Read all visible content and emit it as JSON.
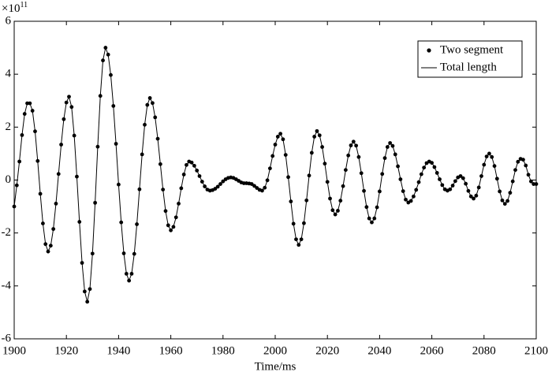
{
  "chart_data": {
    "type": "line",
    "xlabel": "Time/ms",
    "y_scale_label": {
      "base": "×10",
      "exponent": "11"
    },
    "xlim": [
      1900,
      2100
    ],
    "xticks": [
      1900,
      1920,
      1940,
      1960,
      1980,
      2000,
      2020,
      2040,
      2060,
      2080,
      2100
    ],
    "ylim": [
      -6,
      6
    ],
    "yticks": [
      -6,
      -4,
      -2,
      0,
      2,
      4,
      6
    ],
    "legend": "upper right",
    "x": [
      1900,
      1901,
      1902,
      1903,
      1904,
      1905,
      1906,
      1907,
      1908,
      1909,
      1910,
      1911,
      1912,
      1913,
      1914,
      1915,
      1916,
      1917,
      1918,
      1919,
      1920,
      1921,
      1922,
      1923,
      1924,
      1925,
      1926,
      1927,
      1928,
      1929,
      1930,
      1931,
      1932,
      1933,
      1934,
      1935,
      1936,
      1937,
      1938,
      1939,
      1940,
      1941,
      1942,
      1943,
      1944,
      1945,
      1946,
      1947,
      1948,
      1949,
      1950,
      1951,
      1952,
      1953,
      1954,
      1955,
      1956,
      1957,
      1958,
      1959,
      1960,
      1961,
      1962,
      1963,
      1964,
      1965,
      1966,
      1967,
      1968,
      1969,
      1970,
      1971,
      1972,
      1973,
      1974,
      1975,
      1976,
      1977,
      1978,
      1979,
      1980,
      1981,
      1982,
      1983,
      1984,
      1985,
      1986,
      1987,
      1988,
      1989,
      1990,
      1991,
      1992,
      1993,
      1994,
      1995,
      1996,
      1997,
      1998,
      1999,
      2000,
      2001,
      2002,
      2003,
      2004,
      2005,
      2006,
      2007,
      2008,
      2009,
      2010,
      2011,
      2012,
      2013,
      2014,
      2015,
      2016,
      2017,
      2018,
      2019,
      2020,
      2021,
      2022,
      2023,
      2024,
      2025,
      2026,
      2027,
      2028,
      2029,
      2030,
      2031,
      2032,
      2033,
      2034,
      2035,
      2036,
      2037,
      2038,
      2039,
      2040,
      2041,
      2042,
      2043,
      2044,
      2045,
      2046,
      2047,
      2048,
      2049,
      2050,
      2051,
      2052,
      2053,
      2054,
      2055,
      2056,
      2057,
      2058,
      2059,
      2060,
      2061,
      2062,
      2063,
      2064,
      2065,
      2066,
      2067,
      2068,
      2069,
      2070,
      2071,
      2072,
      2073,
      2074,
      2075,
      2076,
      2077,
      2078,
      2079,
      2080,
      2081,
      2082,
      2083,
      2084,
      2085,
      2086,
      2087,
      2088,
      2089,
      2090,
      2091,
      2092,
      2093,
      2094,
      2095,
      2096,
      2097,
      2098,
      2099,
      2100
    ],
    "series": [
      {
        "name": "Two segment",
        "color": "#000000",
        "style": "dots",
        "values": [
          -1.0,
          -0.2,
          0.7,
          1.7,
          2.5,
          2.9,
          2.9,
          2.62,
          1.84,
          0.72,
          -0.52,
          -1.64,
          -2.42,
          -2.7,
          -2.48,
          -1.85,
          -0.89,
          0.23,
          1.34,
          2.3,
          2.93,
          3.15,
          2.76,
          1.68,
          0.13,
          -1.58,
          -3.13,
          -4.21,
          -4.6,
          -4.12,
          -2.78,
          -0.86,
          1.26,
          3.18,
          4.52,
          5.0,
          4.74,
          3.97,
          2.8,
          1.37,
          -0.17,
          -1.6,
          -2.77,
          -3.54,
          -3.8,
          -3.54,
          -2.79,
          -1.67,
          -0.35,
          0.97,
          2.09,
          2.84,
          3.1,
          2.91,
          2.37,
          1.56,
          0.6,
          -0.36,
          -1.17,
          -1.71,
          -1.9,
          -1.77,
          -1.41,
          -0.89,
          -0.31,
          0.21,
          0.57,
          0.7,
          0.66,
          0.54,
          0.36,
          0.15,
          -0.06,
          -0.24,
          -0.36,
          -0.4,
          -0.38,
          -0.33,
          -0.25,
          -0.15,
          -0.05,
          0.03,
          0.08,
          0.1,
          0.08,
          0.03,
          -0.03,
          -0.09,
          -0.12,
          -0.12,
          -0.13,
          -0.15,
          -0.22,
          -0.3,
          -0.37,
          -0.4,
          -0.29,
          -0.01,
          0.44,
          0.91,
          1.34,
          1.64,
          1.75,
          1.54,
          0.95,
          0.11,
          -0.81,
          -1.65,
          -2.24,
          -2.45,
          -2.24,
          -1.63,
          -0.77,
          0.17,
          1.03,
          1.64,
          1.85,
          1.69,
          1.25,
          0.62,
          -0.07,
          -0.7,
          -1.14,
          -1.3,
          -1.16,
          -0.78,
          -0.23,
          0.38,
          0.93,
          1.31,
          1.45,
          1.3,
          0.87,
          0.26,
          -0.41,
          -1.02,
          -1.45,
          -1.6,
          -1.45,
          -1.03,
          -0.43,
          0.23,
          0.83,
          1.25,
          1.4,
          1.29,
          0.97,
          0.52,
          0.03,
          -0.42,
          -0.74,
          -0.85,
          -0.79,
          -0.62,
          -0.37,
          -0.08,
          0.22,
          0.47,
          0.64,
          0.7,
          0.65,
          0.49,
          0.27,
          0.03,
          -0.19,
          -0.35,
          -0.4,
          -0.35,
          -0.21,
          -0.04,
          0.1,
          0.15,
          0.07,
          -0.14,
          -0.41,
          -0.62,
          -0.7,
          -0.59,
          -0.28,
          0.15,
          0.58,
          0.89,
          1.0,
          0.87,
          0.53,
          0.05,
          -0.43,
          -0.77,
          -0.9,
          -0.79,
          -0.48,
          -0.05,
          0.38,
          0.69,
          0.8,
          0.77,
          0.55,
          0.2,
          -0.05,
          -0.15,
          -0.15
        ]
      },
      {
        "name": "Total length",
        "color": "#000000",
        "style": "line",
        "values": [
          -1.0,
          -0.2,
          0.7,
          1.7,
          2.5,
          2.9,
          2.9,
          2.62,
          1.84,
          0.72,
          -0.52,
          -1.64,
          -2.42,
          -2.7,
          -2.48,
          -1.85,
          -0.89,
          0.23,
          1.34,
          2.3,
          2.93,
          3.15,
          2.76,
          1.68,
          0.13,
          -1.58,
          -3.13,
          -4.21,
          -4.6,
          -4.12,
          -2.78,
          -0.86,
          1.26,
          3.18,
          4.52,
          5.0,
          4.74,
          3.97,
          2.8,
          1.37,
          -0.17,
          -1.6,
          -2.77,
          -3.54,
          -3.8,
          -3.54,
          -2.79,
          -1.67,
          -0.35,
          0.97,
          2.09,
          2.84,
          3.1,
          2.91,
          2.37,
          1.56,
          0.6,
          -0.36,
          -1.17,
          -1.71,
          -1.9,
          -1.77,
          -1.41,
          -0.89,
          -0.31,
          0.21,
          0.57,
          0.7,
          0.66,
          0.54,
          0.36,
          0.15,
          -0.06,
          -0.24,
          -0.36,
          -0.4,
          -0.38,
          -0.33,
          -0.25,
          -0.15,
          -0.05,
          0.03,
          0.08,
          0.1,
          0.08,
          0.03,
          -0.03,
          -0.09,
          -0.12,
          -0.12,
          -0.13,
          -0.15,
          -0.22,
          -0.3,
          -0.37,
          -0.4,
          -0.29,
          -0.01,
          0.44,
          0.91,
          1.34,
          1.64,
          1.75,
          1.54,
          0.95,
          0.11,
          -0.81,
          -1.65,
          -2.24,
          -2.45,
          -2.24,
          -1.63,
          -0.77,
          0.17,
          1.03,
          1.64,
          1.85,
          1.69,
          1.25,
          0.62,
          -0.07,
          -0.7,
          -1.14,
          -1.3,
          -1.16,
          -0.78,
          -0.23,
          0.38,
          0.93,
          1.31,
          1.45,
          1.3,
          0.87,
          0.26,
          -0.41,
          -1.02,
          -1.45,
          -1.6,
          -1.45,
          -1.03,
          -0.43,
          0.23,
          0.83,
          1.25,
          1.4,
          1.29,
          0.97,
          0.52,
          0.03,
          -0.42,
          -0.74,
          -0.85,
          -0.79,
          -0.62,
          -0.37,
          -0.08,
          0.22,
          0.47,
          0.64,
          0.7,
          0.65,
          0.49,
          0.27,
          0.03,
          -0.19,
          -0.35,
          -0.4,
          -0.35,
          -0.21,
          -0.04,
          0.1,
          0.15,
          0.07,
          -0.14,
          -0.41,
          -0.62,
          -0.7,
          -0.59,
          -0.28,
          0.15,
          0.58,
          0.89,
          1.0,
          0.87,
          0.53,
          0.05,
          -0.43,
          -0.77,
          -0.9,
          -0.79,
          -0.48,
          -0.05,
          0.38,
          0.69,
          0.8,
          0.77,
          0.55,
          0.2,
          -0.05,
          -0.15,
          -0.15
        ]
      }
    ]
  }
}
